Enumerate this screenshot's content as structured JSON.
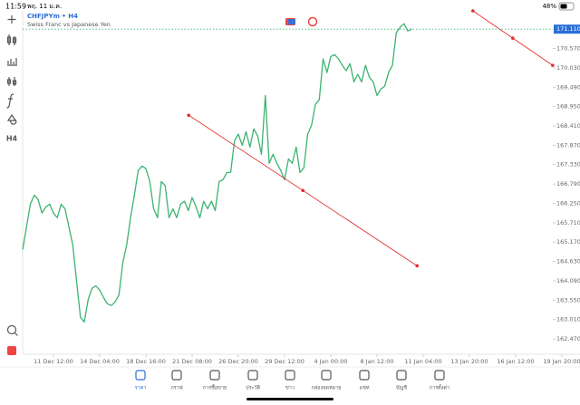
{
  "status_bar": {
    "time": "11:59",
    "date": "พฤ. 11 ม.ค.",
    "battery": "48%"
  },
  "toolbar": {
    "timeframe": "H4"
  },
  "chart_data": {
    "type": "line",
    "title": "CHFJPYm • H4",
    "subtitle": "Swiss Franc vs Japanese Yen",
    "color": "#3cb371",
    "values": [
      164.96,
      165.6,
      166.23,
      166.48,
      166.36,
      165.98,
      166.15,
      166.23,
      165.98,
      165.85,
      166.23,
      166.1,
      165.6,
      165.09,
      164.08,
      163.07,
      162.94,
      163.57,
      163.88,
      163.95,
      163.83,
      163.62,
      163.45,
      163.4,
      163.5,
      163.7,
      164.59,
      165.09,
      165.85,
      166.48,
      167.17,
      167.29,
      167.22,
      166.86,
      166.1,
      165.85,
      166.86,
      166.74,
      165.85,
      166.1,
      165.85,
      166.23,
      166.31,
      166.05,
      166.41,
      166.15,
      165.85,
      166.31,
      166.1,
      166.31,
      166.05,
      166.86,
      166.91,
      167.11,
      167.11,
      168.0,
      168.18,
      167.87,
      168.25,
      167.82,
      168.33,
      168.13,
      167.62,
      169.26,
      167.37,
      167.62,
      167.37,
      167.17,
      166.91,
      167.49,
      167.37,
      167.82,
      167.11,
      167.24,
      168.18,
      168.43,
      169.01,
      169.14,
      170.28,
      169.9,
      170.35,
      170.4,
      170.28,
      170.1,
      169.95,
      170.15,
      169.64,
      169.85,
      169.64,
      170.1,
      169.77,
      169.64,
      169.26,
      169.44,
      169.52,
      169.9,
      170.1,
      171.01,
      171.16,
      171.26,
      171.06,
      171.11
    ],
    "xlim": [
      0,
      140
    ],
    "xticks": [
      {
        "value": 8,
        "label": "11 Dec 12:00"
      },
      {
        "value": 20,
        "label": "14 Dec 04:00"
      },
      {
        "value": 32,
        "label": "18 Dec 16:00"
      },
      {
        "value": 44,
        "label": "21 Dec 08:00"
      },
      {
        "value": 56,
        "label": "26 Dec 20:00"
      },
      {
        "value": 68,
        "label": "29 Dec 12:00"
      },
      {
        "value": 80,
        "label": "4 Jan 00:00"
      },
      {
        "value": 92,
        "label": "8 Jan 12:00"
      },
      {
        "value": 104,
        "label": "11 Jan 04:00"
      },
      {
        "value": 116,
        "label": "13 Jan 20:00"
      },
      {
        "value": 128,
        "label": "16 Jan 12:00"
      },
      {
        "value": 140,
        "label": "19 Jan 20:00"
      }
    ],
    "ylim": [
      162.37,
      171.62
    ],
    "yticks": [
      {
        "value": 162.47,
        "label": "162.470"
      },
      {
        "value": 163.01,
        "label": "163.010"
      },
      {
        "value": 163.55,
        "label": "163.550"
      },
      {
        "value": 164.09,
        "label": "164.090"
      },
      {
        "value": 164.63,
        "label": "164.630"
      },
      {
        "value": 165.17,
        "label": "165.170"
      },
      {
        "value": 165.71,
        "label": "165.710"
      },
      {
        "value": 166.25,
        "label": "166.250"
      },
      {
        "value": 166.79,
        "label": "166.790"
      },
      {
        "value": 167.33,
        "label": "167.330"
      },
      {
        "value": 167.87,
        "label": "167.870"
      },
      {
        "value": 168.41,
        "label": "168.410"
      },
      {
        "value": 168.95,
        "label": "168.950"
      },
      {
        "value": 169.49,
        "label": "169.490"
      },
      {
        "value": 170.03,
        "label": "170.030"
      },
      {
        "value": 170.57,
        "label": "170.570"
      }
    ],
    "last_price": {
      "value": 171.11,
      "label": "171.110"
    },
    "trendlines": [
      {
        "color": "#e0302f",
        "x": [
          43.1,
          102.4
        ],
        "y": [
          168.71,
          164.51
        ]
      },
      {
        "color": "#e0302f",
        "x": [
          116.9,
          137.6
        ],
        "y": [
          171.62,
          170.1
        ]
      }
    ]
  },
  "bottom_nav": {
    "items": [
      "ราคา",
      "กราฟ",
      "การซื้อขาย",
      "ประวัติ",
      "ข่าว",
      "กล่องจดหมาย",
      "แชท",
      "บัญชี",
      "การตั้งค่า"
    ],
    "active": 0
  }
}
